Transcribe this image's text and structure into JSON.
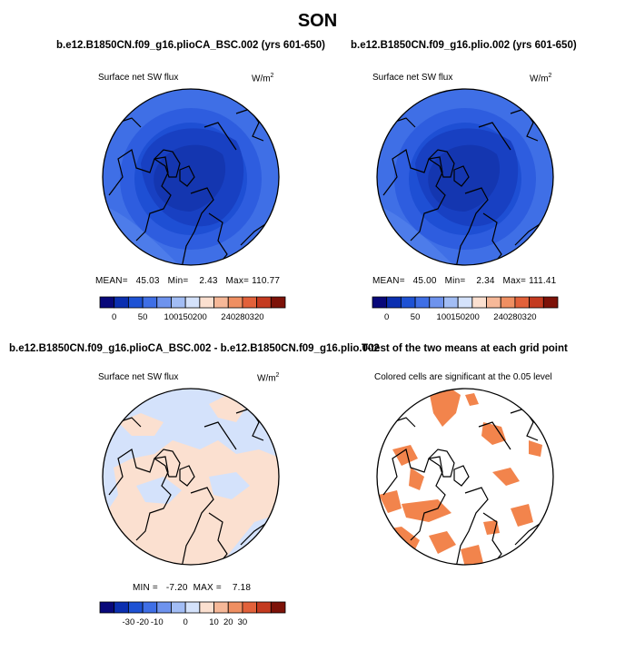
{
  "page": {
    "title": "SON"
  },
  "panels": [
    {
      "title": "b.e12.B1850CN.f09_g16.plioCA_BSC.002 (yrs 601-650)",
      "left_label": "Surface net SW flux",
      "units": "W/m",
      "units_sup": "2",
      "stats": {
        "mean_label": "MEAN=",
        "mean": "45.03",
        "min_label": "Min=",
        "min": "2.43",
        "max_label": "Max=",
        "max": "110.77"
      },
      "colorbar": {
        "ticks": [
          "0",
          "50",
          "100",
          "150",
          "200",
          "240",
          "280",
          "320"
        ],
        "colors": [
          "#08087a",
          "#0b2fb0",
          "#1e52d4",
          "#3f6fe6",
          "#6e93ee",
          "#a2bdf5",
          "#d4e2fb",
          "#fbe0d0",
          "#f6b898",
          "#ef8f62",
          "#e2613a",
          "#c43a1f",
          "#7d1208"
        ]
      }
    },
    {
      "title": "b.e12.B1850CN.f09_g16.plio.002 (yrs 601-650)",
      "left_label": "Surface net SW flux",
      "units": "W/m",
      "units_sup": "2",
      "stats": {
        "mean_label": "MEAN=",
        "mean": "45.00",
        "min_label": "Min=",
        "min": "2.34",
        "max_label": "Max=",
        "max": "111.41"
      },
      "colorbar": {
        "ticks": [
          "0",
          "50",
          "100",
          "150",
          "200",
          "240",
          "280",
          "320"
        ],
        "colors": [
          "#08087a",
          "#0b2fb0",
          "#1e52d4",
          "#3f6fe6",
          "#6e93ee",
          "#a2bdf5",
          "#d4e2fb",
          "#fbe0d0",
          "#f6b898",
          "#ef8f62",
          "#e2613a",
          "#c43a1f",
          "#7d1208"
        ]
      }
    },
    {
      "title": "b.e12.B1850CN.f09_g16.plioCA_BSC.002 - b.e12.B1850CN.f09_g16.plio.002",
      "left_label": "Surface net SW flux",
      "units": "W/m",
      "units_sup": "2",
      "stats": {
        "min_label": "MIN =",
        "min": "-7.20",
        "max_label": "MAX =",
        "max": "7.18"
      },
      "colorbar": {
        "ticks": [
          "-30",
          "-20",
          "-10",
          "0",
          "10",
          "20",
          "30"
        ],
        "colors": [
          "#08087a",
          "#0b2fb0",
          "#1e52d4",
          "#3f6fe6",
          "#6e93ee",
          "#a2bdf5",
          "#d4e2fb",
          "#fbe0d0",
          "#f6b898",
          "#ef8f62",
          "#e2613a",
          "#c43a1f",
          "#7d1208"
        ]
      }
    },
    {
      "title": "T-test of the two means at each grid point",
      "subtitle": "Colored cells are significant at the 0.05 level"
    }
  ]
}
